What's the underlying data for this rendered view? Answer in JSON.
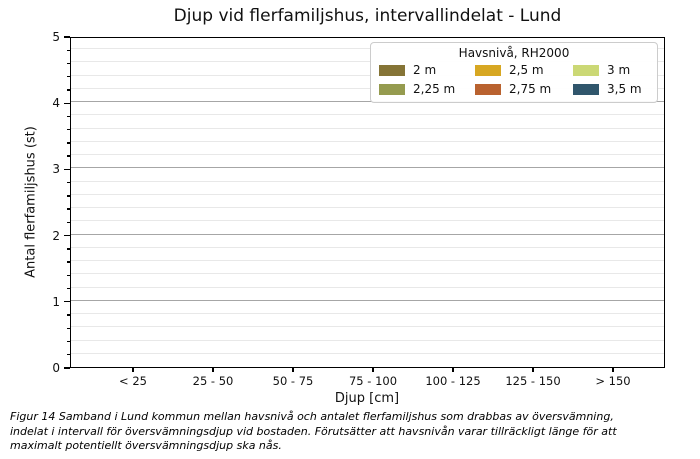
{
  "chart_data": {
    "type": "bar",
    "title": "Djup vid flerfamiljshus, intervallindelat - Lund",
    "xlabel": "Djup [cm]",
    "ylabel": "Antal flerfamiljshus (st)",
    "categories": [
      "< 25",
      "25 - 50",
      "50 - 75",
      "75 - 100",
      "100 - 125",
      "125 - 150",
      "> 150"
    ],
    "series": [
      {
        "name": "2 m",
        "color": "#857436",
        "values": [
          0,
          0,
          0,
          0,
          0,
          0,
          0
        ]
      },
      {
        "name": "2,25 m",
        "color": "#959b4f",
        "values": [
          0,
          0,
          0,
          0,
          0,
          0,
          0
        ]
      },
      {
        "name": "2,5 m",
        "color": "#d7a722",
        "values": [
          0,
          0,
          0,
          0,
          0,
          0,
          0
        ]
      },
      {
        "name": "2,75 m",
        "color": "#b9622f",
        "values": [
          0,
          0,
          0,
          0,
          0,
          0,
          0
        ]
      },
      {
        "name": "3 m",
        "color": "#cbd875",
        "values": [
          0,
          0,
          0,
          0,
          0,
          0,
          0
        ]
      },
      {
        "name": "3,5 m",
        "color": "#30566c",
        "values": [
          0,
          0,
          0,
          0,
          0,
          0,
          0
        ]
      }
    ],
    "ylim": [
      0,
      5
    ],
    "yticks": [
      0,
      1,
      2,
      3,
      4,
      5
    ],
    "minor_tick_step": 0.2,
    "grid": true,
    "legend": {
      "title": "Havsnivå, RH2000",
      "position": "upper right",
      "columns": 3
    }
  },
  "caption": {
    "lines": [
      "Figur 14 Samband i Lund kommun mellan havsnivå och antalet flerfamiljshus som drabbas av översvämning,",
      "indelat i intervall för översvämningsdjup vid bostaden. Förutsätter att havsnivån varar tillräckligt länge för att",
      "maximalt potentiellt översvämningsdjup ska nås."
    ]
  }
}
